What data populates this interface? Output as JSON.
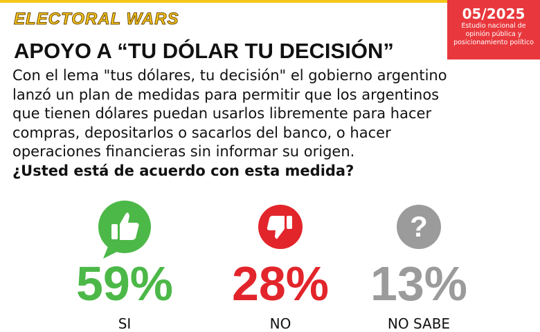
{
  "header": {
    "brand": "ELECTORAL WARS",
    "date": "05/2025",
    "source": [
      "Estudio nacional de",
      "opinión pública y",
      "posicionamiento político"
    ]
  },
  "title": "APOYO A “TU DÓLAR TU DECISIÓN”",
  "body": [
    "Con el lema \"tus dólares, tu decisión\" el gobierno argentino",
    "lanzó un plan de medidas para permitir que los argentinos",
    "que tienen dólares puedan usarlos libremente para hacer",
    "compras, depositarlos o sacarlos del banco, o hacer",
    "operaciones financieras sin informar su origen."
  ],
  "question": "¿Usted está de acuerdo con esta medida?",
  "results": [
    {
      "value": "59%",
      "label": "SI",
      "color": "#4cb848",
      "icon": "thumbs-up"
    },
    {
      "value": "28%",
      "label": "NO",
      "color": "#e2252b",
      "icon": "thumbs-down"
    },
    {
      "value": "13%",
      "label": "NO SABE",
      "color": "#9b9b9b",
      "icon": "question"
    }
  ]
}
